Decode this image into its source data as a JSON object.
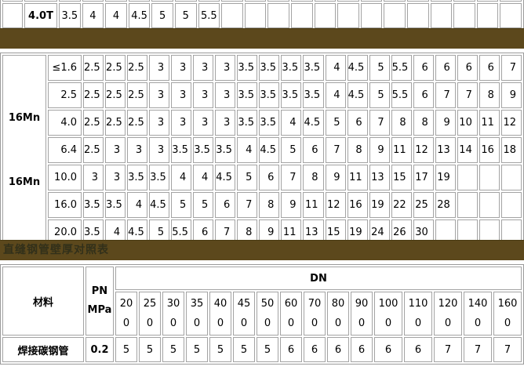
{
  "colors": {
    "banner_bg": "#5C481C",
    "banner_text": "#32301A",
    "grid_border": "#A3A3A3",
    "page_bg": "#FFFFFF"
  },
  "top_table": {
    "row_label": "4.0T",
    "values": [
      "3.5",
      "4",
      "4",
      "4.5",
      "5",
      "5",
      "5.5",
      "",
      "",
      "",
      "",
      "",
      "",
      "",
      "",
      "",
      "",
      "",
      "",
      ""
    ]
  },
  "main_table": {
    "group_labels": [
      "16Mn",
      "16Mn"
    ],
    "rows": [
      {
        "thickness": "≤1.6",
        "values": [
          "2.5",
          "2.5",
          "2.5",
          "3",
          "3",
          "3",
          "3",
          "3.5",
          "3.5",
          "3.5",
          "3.5",
          "4",
          "4.5",
          "5",
          "5.5",
          "6",
          "6",
          "6",
          "6",
          "7"
        ]
      },
      {
        "thickness": "2.5",
        "values": [
          "2.5",
          "2.5",
          "2.5",
          "3",
          "3",
          "3",
          "3",
          "3.5",
          "3.5",
          "3.5",
          "3.5",
          "4",
          "4.5",
          "5",
          "5.5",
          "6",
          "7",
          "7",
          "8",
          "9"
        ]
      },
      {
        "thickness": "4.0",
        "values": [
          "2.5",
          "2.5",
          "2.5",
          "3",
          "3",
          "3",
          "3",
          "3.5",
          "3.5",
          "4",
          "4.5",
          "5",
          "6",
          "7",
          "8",
          "8",
          "9",
          "10",
          "11",
          "12"
        ]
      },
      {
        "thickness": "6.4",
        "values": [
          "2.5",
          "3",
          "3",
          "3",
          "3.5",
          "3.5",
          "3.5",
          "4",
          "4.5",
          "5",
          "6",
          "7",
          "8",
          "9",
          "11",
          "12",
          "13",
          "14",
          "16",
          "18"
        ]
      },
      {
        "thickness": "10.0",
        "values": [
          "3",
          "3",
          "3.5",
          "3.5",
          "4",
          "4",
          "4.5",
          "5",
          "6",
          "7",
          "8",
          "9",
          "11",
          "13",
          "15",
          "17",
          "19",
          "",
          "",
          ""
        ]
      },
      {
        "thickness": "16.0",
        "values": [
          "3.5",
          "3.5",
          "4",
          "4.5",
          "5",
          "5",
          "6",
          "7",
          "8",
          "9",
          "11",
          "12",
          "16",
          "19",
          "22",
          "25",
          "28",
          "",
          "",
          ""
        ]
      },
      {
        "thickness": "20.0",
        "values": [
          "3.5",
          "4",
          "4.5",
          "5",
          "5.5",
          "6",
          "7",
          "8",
          "9",
          "11",
          "13",
          "15",
          "19",
          "24",
          "26",
          "30",
          "",
          "",
          "",
          ""
        ]
      }
    ]
  },
  "section_banner": {
    "title": "直缝钢管壁厚对照表"
  },
  "bottom_table": {
    "material_header": "材料",
    "pn_header": "PN",
    "pn_unit": "MPa",
    "dn_header": "DN",
    "dn_values": [
      "200",
      "250",
      "300",
      "350",
      "400",
      "450",
      "500",
      "600",
      "700",
      "800",
      "900",
      "1000",
      "1100",
      "1200",
      "1400",
      "1600"
    ],
    "rows": [
      {
        "material": "焊接碳钢管",
        "pn": "0.2",
        "values": [
          "5",
          "5",
          "5",
          "5",
          "5",
          "5",
          "5",
          "6",
          "6",
          "6",
          "6",
          "6",
          "6",
          "7",
          "7",
          "7"
        ]
      }
    ]
  }
}
